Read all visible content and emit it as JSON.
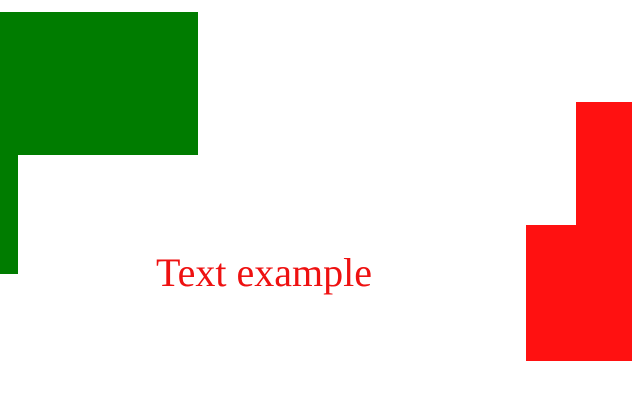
{
  "text": {
    "label": "Text example",
    "color": "#ee1111"
  },
  "shapes": {
    "green_shape": {
      "color": "#007c00"
    },
    "red_shape": {
      "color": "#ff1111"
    }
  }
}
